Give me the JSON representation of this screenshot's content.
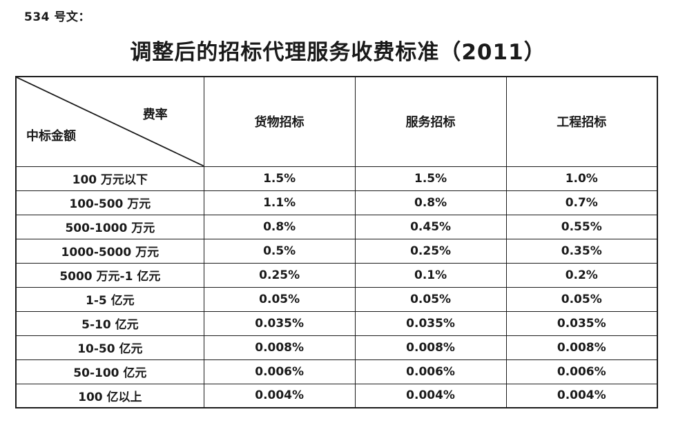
{
  "page": {
    "doc_label": "534 号文：",
    "title": "调整后的招标代理服务收费标准（2011）"
  },
  "table": {
    "corner": {
      "top_right_label": "费率",
      "bottom_left_label": "中标金额"
    },
    "columns": [
      "货物招标",
      "服务招标",
      "工程招标"
    ],
    "rows": [
      {
        "amount": "100 万元以下",
        "rates": [
          "1.5%",
          "1.5%",
          "1.0%"
        ]
      },
      {
        "amount": "100-500 万元",
        "rates": [
          "1.1%",
          "0.8%",
          "0.7%"
        ]
      },
      {
        "amount": "500-1000 万元",
        "rates": [
          "0.8%",
          "0.45%",
          "0.55%"
        ]
      },
      {
        "amount": "1000-5000 万元",
        "rates": [
          "0.5%",
          "0.25%",
          "0.35%"
        ]
      },
      {
        "amount": "5000 万元-1 亿元",
        "rates": [
          "0.25%",
          "0.1%",
          "0.2%"
        ]
      },
      {
        "amount": "1-5 亿元",
        "rates": [
          "0.05%",
          "0.05%",
          "0.05%"
        ]
      },
      {
        "amount": "5-10 亿元",
        "rates": [
          "0.035%",
          "0.035%",
          "0.035%"
        ]
      },
      {
        "amount": "10-50 亿元",
        "rates": [
          "0.008%",
          "0.008%",
          "0.008%"
        ]
      },
      {
        "amount": "50-100 亿元",
        "rates": [
          "0.006%",
          "0.006%",
          "0.006%"
        ]
      },
      {
        "amount": "100 亿以上",
        "rates": [
          "0.004%",
          "0.004%",
          "0.004%"
        ]
      }
    ],
    "colors": {
      "text": "#1a1a1a",
      "border": "#1a1a1a",
      "background": "#ffffff"
    }
  }
}
